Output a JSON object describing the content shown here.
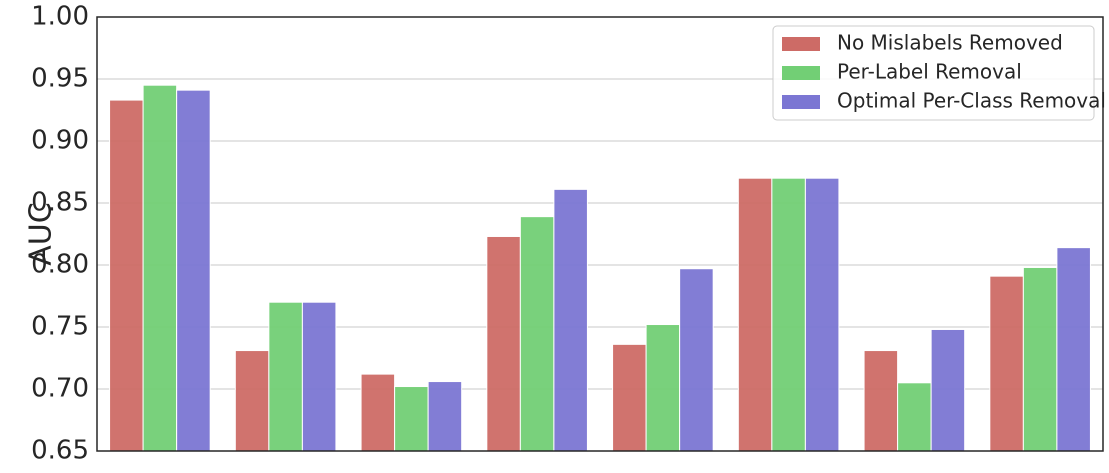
{
  "chart_data": {
    "type": "bar",
    "y_label": "AUC",
    "categories": [
      null,
      null,
      null,
      null,
      null,
      null,
      null,
      null
    ],
    "series": [
      {
        "name": "No Mislabels Removed",
        "color": "#cd6b66",
        "values": [
          0.933,
          0.731,
          0.712,
          0.823,
          0.736,
          0.87,
          0.731,
          0.791
        ]
      },
      {
        "name": "Per-Label Removal",
        "color": "#72cf75",
        "values": [
          0.945,
          0.77,
          0.702,
          0.839,
          0.752,
          0.87,
          0.705,
          0.798
        ]
      },
      {
        "name": "Optimal Per-Class Removal",
        "color": "#7b76d3",
        "values": [
          0.941,
          0.77,
          0.706,
          0.861,
          0.797,
          0.87,
          0.748,
          0.814
        ]
      }
    ],
    "ylim": [
      0.65,
      1.0
    ],
    "yticks": [
      0.65,
      {
        "value": 0.7,
        "label": "0.70"
      },
      0.75,
      {
        "value": 0.8,
        "label": "0.80"
      },
      0.85,
      {
        "value": 0.9,
        "label": "0.90"
      },
      0.95,
      {
        "value": 1.0,
        "label": "1.00"
      }
    ],
    "grid": true,
    "legend": "upper right"
  }
}
